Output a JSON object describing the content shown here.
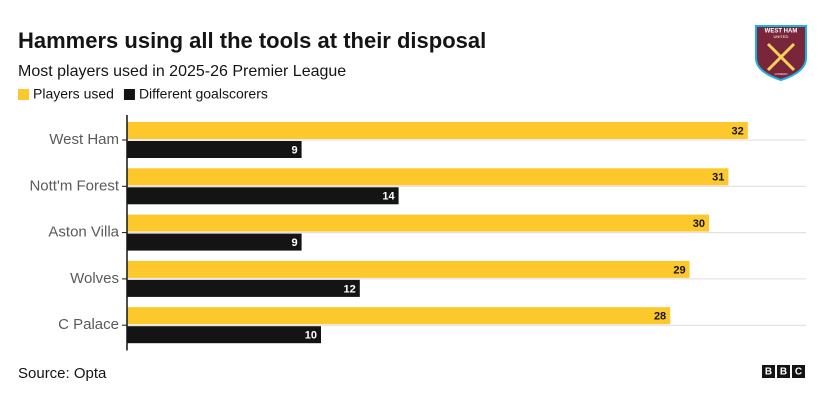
{
  "chart_data": {
    "type": "bar",
    "orientation": "horizontal",
    "title": "Hammers using all the tools at their disposal",
    "subtitle": "Most players used in 2025-26 Premier League",
    "source": "Source: Opta",
    "categories": [
      "West Ham",
      "Nott'm Forest",
      "Aston Villa",
      "Wolves",
      "C Palace"
    ],
    "series": [
      {
        "name": "Players used",
        "color": "#fcc82b",
        "values": [
          32,
          31,
          30,
          29,
          28
        ]
      },
      {
        "name": "Different goalscorers",
        "color": "#141414",
        "values": [
          9,
          14,
          9,
          12,
          10
        ]
      }
    ],
    "grid": true
  },
  "logo": {
    "text": "WEST HAM",
    "subtext": "UNITED",
    "footer": "LONDON"
  },
  "branding": [
    "B",
    "B",
    "C"
  ]
}
